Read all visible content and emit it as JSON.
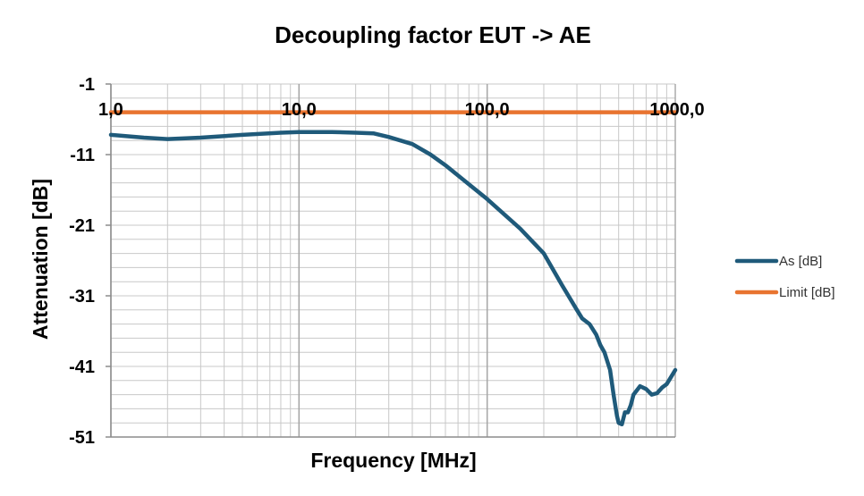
{
  "chart_data": {
    "type": "line",
    "title": "Decoupling factor EUT -> AE",
    "xlabel": "Frequency [MHz]",
    "ylabel": "Attenuation [dB]",
    "x_scale": "log",
    "xlim": [
      1,
      1000
    ],
    "ylim": [
      -51,
      -1
    ],
    "x_ticks": [
      "1,0",
      "10,0",
      "100,0",
      "1000,0"
    ],
    "y_ticks": [
      "-1",
      "-11",
      "-21",
      "-31",
      "-41",
      "-51"
    ],
    "grid": true,
    "legend_position": "right",
    "series": [
      {
        "name": "As [dB]",
        "color": "#1f5a7a",
        "x": [
          1,
          1.5,
          2,
          3,
          5,
          8,
          10,
          15,
          20,
          25,
          30,
          40,
          50,
          60,
          80,
          100,
          150,
          200,
          250,
          300,
          320,
          350,
          380,
          400,
          420,
          450,
          470,
          490,
          500,
          520,
          540,
          560,
          580,
          600,
          650,
          700,
          750,
          800,
          850,
          900,
          950,
          1000
        ],
        "y": [
          -8.2,
          -8.6,
          -8.8,
          -8.6,
          -8.2,
          -7.9,
          -7.8,
          -7.8,
          -7.9,
          -8.0,
          -8.5,
          -9.5,
          -11.0,
          -12.5,
          -15.2,
          -17.3,
          -21.5,
          -25.0,
          -29.5,
          -33.0,
          -34.2,
          -35.0,
          -36.5,
          -38.0,
          -39.0,
          -41.5,
          -45.0,
          -48.0,
          -49.0,
          -49.2,
          -47.5,
          -47.5,
          -46.5,
          -45.0,
          -43.8,
          -44.2,
          -45.0,
          -44.8,
          -44.0,
          -43.5,
          -42.5,
          -41.5
        ]
      },
      {
        "name": "Limit [dB]",
        "color": "#e87430",
        "x": [
          1,
          1000
        ],
        "y": [
          -5,
          -5
        ]
      }
    ]
  }
}
